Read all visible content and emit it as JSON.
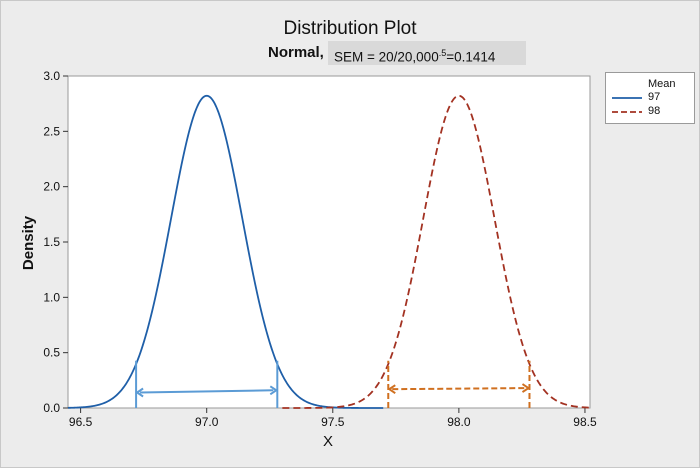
{
  "chart_data": {
    "type": "line",
    "title": "Distribution Plot",
    "subtitle_prefix": "Normal,",
    "subtitle_main": "SEM = 20/20,000",
    "subtitle_sup": ".5",
    "subtitle_end": "=0.1414",
    "xlabel": "X",
    "ylabel": "Density",
    "xlim": [
      96.45,
      98.52
    ],
    "ylim": [
      0,
      3.0
    ],
    "xticks": [
      96.5,
      97.0,
      97.5,
      98.0,
      98.5
    ],
    "xtick_labels": [
      "96.5",
      "97.0",
      "97.5",
      "98.0",
      "98.5"
    ],
    "yticks": [
      0,
      0.5,
      1.0,
      1.5,
      2.0,
      2.5,
      3.0
    ],
    "ytick_labels": [
      "0.0",
      "0.5",
      "1.0",
      "1.5",
      "2.0",
      "2.5",
      "3.0"
    ],
    "grid": false,
    "legend": {
      "title": "Mean",
      "placement": "right"
    },
    "series": [
      {
        "name": "97",
        "distribution": "normal",
        "mean": 97.0,
        "sd": 0.1414,
        "x_range": [
          96.45,
          97.7
        ],
        "color": "#1f5fa8",
        "dash": "solid"
      },
      {
        "name": "98",
        "distribution": "normal",
        "mean": 98.0,
        "sd": 0.1414,
        "x_range": [
          97.3,
          98.52
        ],
        "color": "#a33222",
        "dash": "dashed"
      }
    ],
    "annotations": [
      {
        "type": "double-arrow",
        "x_from": 96.72,
        "x_to": 97.28,
        "y_from": 0.14,
        "y_to": 0.16,
        "color": "#5b9bd5",
        "dash": "solid",
        "bound_lines_x": [
          96.72,
          97.28
        ]
      },
      {
        "type": "double-arrow",
        "x_from": 97.72,
        "x_to": 98.28,
        "y_from": 0.17,
        "y_to": 0.18,
        "color": "#d07020",
        "dash": "dashed",
        "bound_lines_x": [
          97.72,
          98.28
        ]
      }
    ]
  }
}
